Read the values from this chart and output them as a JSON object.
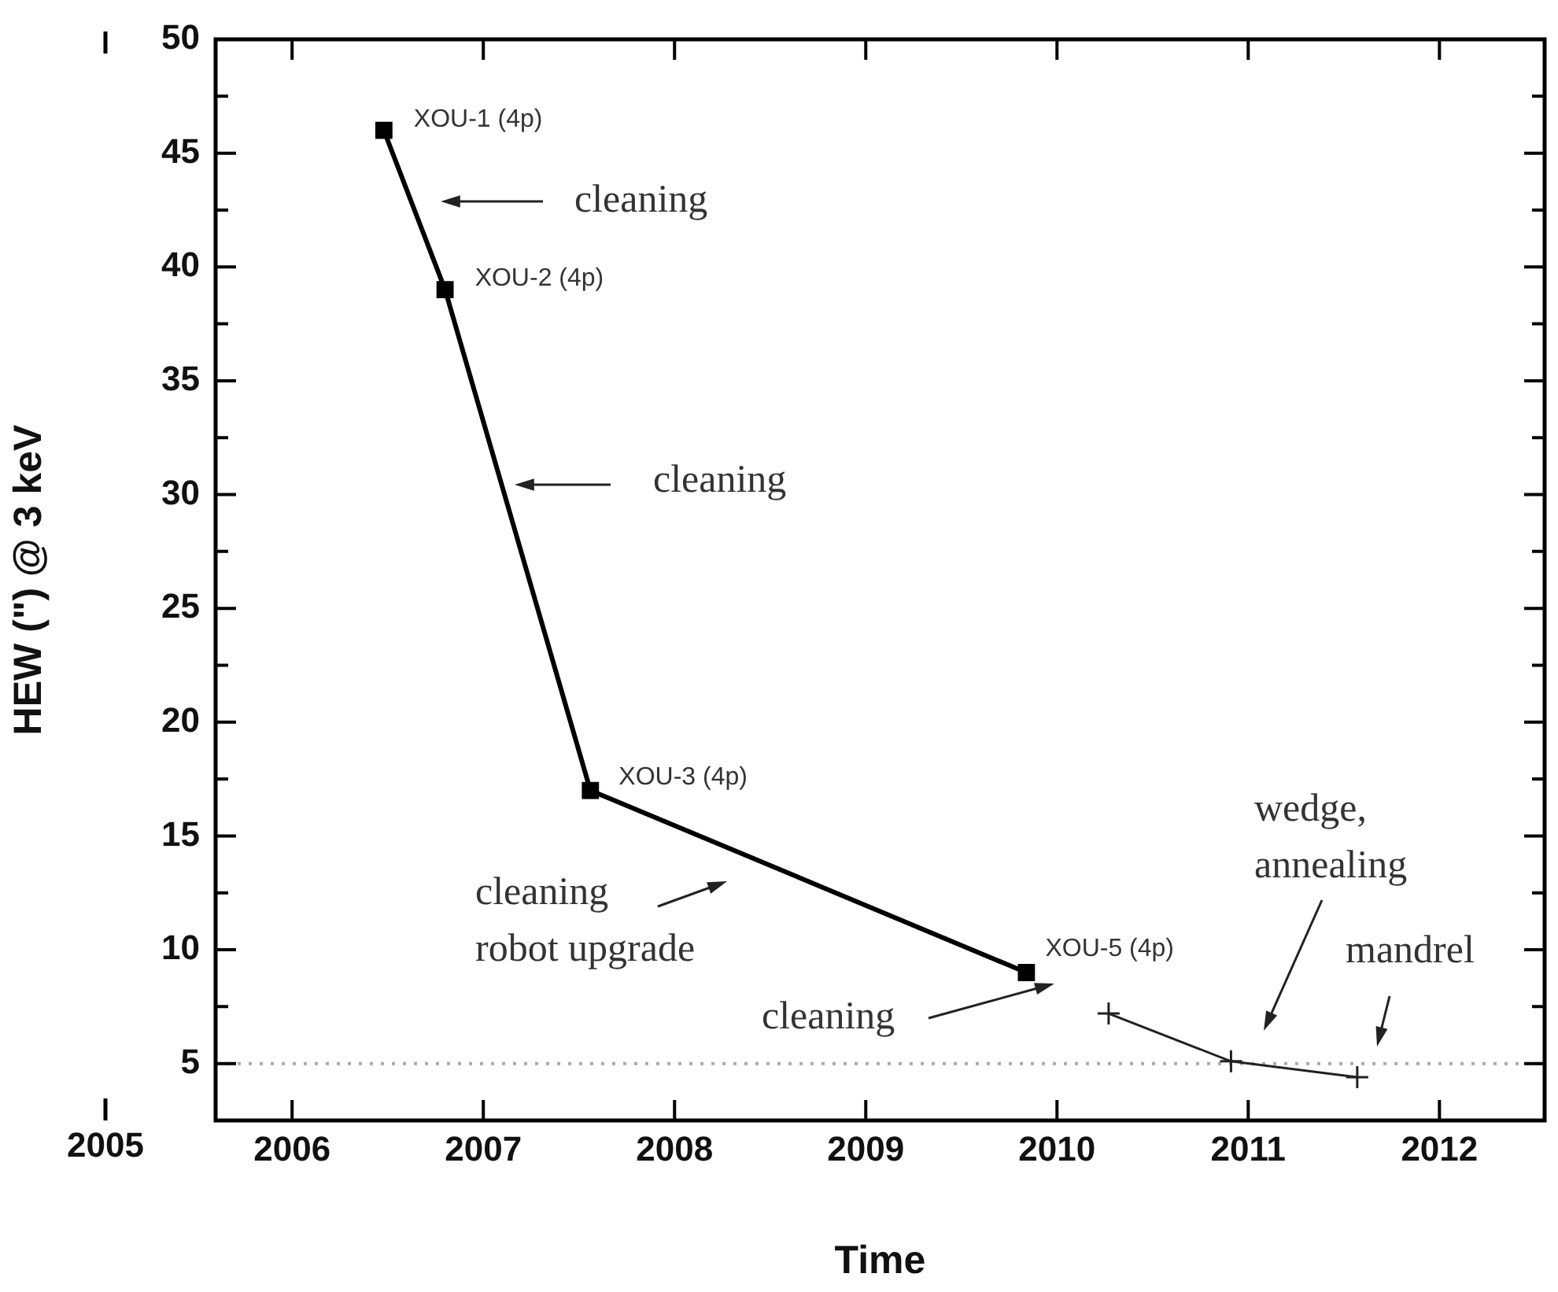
{
  "chart_data": {
    "type": "line",
    "xlabel": "Time",
    "ylabel": "HEW (\") @ 3 keV",
    "xlim": [
      2005.6,
      2012.55
    ],
    "xticks": [
      2006,
      2007,
      2008,
      2009,
      2010,
      2011,
      2012
    ],
    "ylim": [
      2.5,
      50
    ],
    "yticks": [
      {
        "value": 2.5,
        "label": null
      },
      5,
      {
        "value": 7.5,
        "label": null
      },
      10,
      {
        "value": 12.5,
        "label": null
      },
      15,
      {
        "value": 17.5,
        "label": null
      },
      20,
      {
        "value": 22.5,
        "label": null
      },
      25,
      {
        "value": 27.5,
        "label": null
      },
      30,
      {
        "value": 32.5,
        "label": null
      },
      35,
      {
        "value": 37.5,
        "label": null
      },
      40,
      {
        "value": 42.5,
        "label": null
      },
      45,
      {
        "value": 47.5,
        "label": null
      },
      50
    ],
    "grid": false,
    "legend": false,
    "series": [
      {
        "color": "#000000",
        "marker": "square",
        "x": [
          2006.48,
          2006.8,
          2007.56,
          2009.84
        ],
        "values": [
          46,
          39,
          17,
          9
        ]
      },
      {
        "color": "#222222",
        "marker": "cross",
        "x": [
          2010.27,
          2010.91,
          2011.57
        ],
        "values": [
          7.2,
          5.1,
          4.4
        ]
      }
    ],
    "ref_lines": [
      {
        "axis": "y",
        "value": 5,
        "color": "#aaaaaa",
        "line_style": "dotted"
      }
    ],
    "annotations": [
      {
        "text": "XOU-1 (4p)",
        "x": 2006.48,
        "y": 46
      },
      "cleaning",
      {
        "text": "XOU-2 (4p)",
        "x": 2006.8,
        "y": 39
      },
      "cleaning",
      {
        "text": "XOU-3 (4p)",
        "x": 2007.56,
        "y": 17
      },
      "cleaning\nrobot upgrade",
      {
        "text": "XOU-5 (4p)",
        "x": 2009.84,
        "y": 9
      },
      "cleaning",
      "wedge,\nannealing",
      "mandrel",
      "2005"
    ]
  }
}
